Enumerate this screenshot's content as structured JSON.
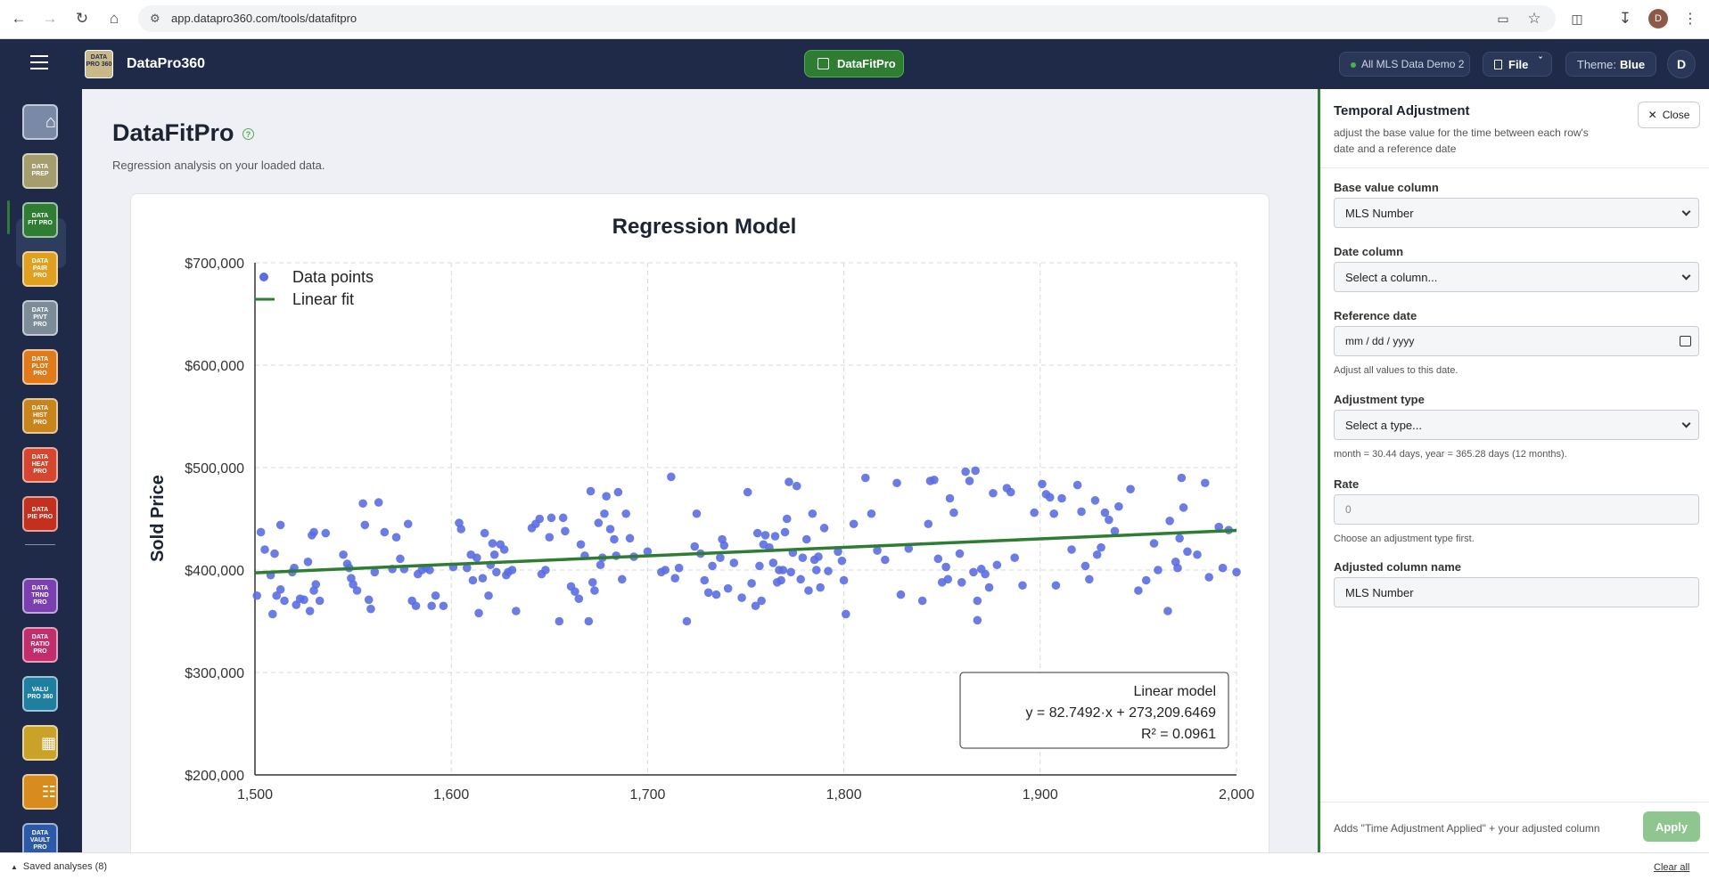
{
  "browser": {
    "url": "app.datapro360.com/tools/datafitpro",
    "profile_initial": "D"
  },
  "topbar": {
    "app_name": "DataPro360",
    "logo_text": "DATA PRO 360",
    "active_tool": "DataFitPro",
    "dataset": "All MLS Data Demo 2",
    "file_label": "File",
    "theme_label": "Theme:",
    "theme_value": "Blue",
    "user_initial": "D"
  },
  "sidebar": {
    "items": [
      {
        "id": "home",
        "label": "",
        "color": "#7a8aa6"
      },
      {
        "id": "prep",
        "label": "DATA PREP",
        "color": "#a59d6e"
      },
      {
        "id": "fit",
        "label": "DATA FIT PRO",
        "color": "#2e7d32"
      },
      {
        "id": "pair",
        "label": "DATA PAIR PRO",
        "color": "#e0a020"
      },
      {
        "id": "pivt",
        "label": "DATA PIVT PRO",
        "color": "#7c8c98"
      },
      {
        "id": "plot",
        "label": "DATA PLOT PRO",
        "color": "#e07b1c"
      },
      {
        "id": "hist",
        "label": "DATA HIST PRO",
        "color": "#c9851b"
      },
      {
        "id": "heat",
        "label": "DATA HEAT PRO",
        "color": "#d6452e"
      },
      {
        "id": "pie",
        "label": "DATA PIE PRO",
        "color": "#c4301e"
      },
      {
        "id": "trnd",
        "label": "DATA TRND PRO",
        "color": "#7b3fb0"
      },
      {
        "id": "ratio",
        "label": "DATA RATIO PRO",
        "color": "#c22d6b"
      },
      {
        "id": "valu",
        "label": "VALU PRO 360",
        "color": "#1f7fa0"
      },
      {
        "id": "table",
        "label": "",
        "color": "#c9a227"
      },
      {
        "id": "report",
        "label": "",
        "color": "#d88c1e"
      },
      {
        "id": "vault",
        "label": "DATA VAULT PRO",
        "color": "#2d5aa8"
      }
    ]
  },
  "main": {
    "title": "DataFitPro",
    "subtitle": "Regression analysis on your loaded data."
  },
  "chart_data": {
    "type": "scatter",
    "title": "Regression Model",
    "xlabel": "",
    "ylabel": "Sold Price",
    "xlim": [
      1500,
      2000
    ],
    "ylim": [
      200000,
      700000
    ],
    "x_ticks": [
      "1,500",
      "1,600",
      "1,700",
      "1,800",
      "1,900",
      "2,000"
    ],
    "y_ticks": [
      "$200,000",
      "$300,000",
      "$400,000",
      "$500,000",
      "$600,000",
      "$700,000"
    ],
    "grid": true,
    "legend_position": "top-left",
    "legend": [
      "Data points",
      "Linear fit"
    ],
    "point_color": "#5b6ee1",
    "fit_color": "#2e7d32",
    "fit": {
      "slope": 82.7492,
      "intercept": 273209.6469
    },
    "model_box": {
      "title": "Linear model",
      "equation": "y = 82.7492·x + 273,209.6469",
      "r2": "R² = 0.0961"
    },
    "points": [
      [
        1501,
        375000
      ],
      [
        1503,
        437000
      ],
      [
        1505,
        420000
      ],
      [
        1508,
        395000
      ],
      [
        1509,
        357000
      ],
      [
        1510,
        416000
      ],
      [
        1511,
        375000
      ],
      [
        1513,
        381000
      ],
      [
        1513,
        444000
      ],
      [
        1515,
        370000
      ],
      [
        1519,
        398000
      ],
      [
        1520,
        402000
      ],
      [
        1521,
        366000
      ],
      [
        1523,
        372000
      ],
      [
        1525,
        371000
      ],
      [
        1527,
        408000
      ],
      [
        1528,
        360000
      ],
      [
        1529,
        434000
      ],
      [
        1530,
        437000
      ],
      [
        1530,
        380000
      ],
      [
        1531,
        386000
      ],
      [
        1533,
        370000
      ],
      [
        1536,
        436000
      ],
      [
        1545,
        415000
      ],
      [
        1547,
        406000
      ],
      [
        1548,
        402000
      ],
      [
        1549,
        392000
      ],
      [
        1550,
        386000
      ],
      [
        1552,
        380000
      ],
      [
        1555,
        465000
      ],
      [
        1556,
        444000
      ],
      [
        1558,
        371000
      ],
      [
        1559,
        362000
      ],
      [
        1561,
        398000
      ],
      [
        1563,
        466000
      ],
      [
        1566,
        437000
      ],
      [
        1570,
        401000
      ],
      [
        1572,
        432000
      ],
      [
        1574,
        411000
      ],
      [
        1576,
        401000
      ],
      [
        1578,
        445000
      ],
      [
        1580,
        370000
      ],
      [
        1582,
        365000
      ],
      [
        1583,
        396000
      ],
      [
        1585,
        400000
      ],
      [
        1587,
        402000
      ],
      [
        1589,
        400000
      ],
      [
        1590,
        365000
      ],
      [
        1592,
        375000
      ],
      [
        1596,
        365000
      ],
      [
        1601,
        403000
      ],
      [
        1604,
        446000
      ],
      [
        1605,
        440000
      ],
      [
        1608,
        402000
      ],
      [
        1610,
        415000
      ],
      [
        1611,
        390000
      ],
      [
        1613,
        412000
      ],
      [
        1614,
        358000
      ],
      [
        1616,
        392000
      ],
      [
        1617,
        436000
      ],
      [
        1619,
        375000
      ],
      [
        1620,
        405000
      ],
      [
        1621,
        426000
      ],
      [
        1622,
        415000
      ],
      [
        1623,
        398000
      ],
      [
        1625,
        425000
      ],
      [
        1627,
        420000
      ],
      [
        1628,
        395000
      ],
      [
        1629,
        398000
      ],
      [
        1631,
        400000
      ],
      [
        1633,
        360000
      ],
      [
        1641,
        441000
      ],
      [
        1643,
        445000
      ],
      [
        1645,
        450000
      ],
      [
        1646,
        396000
      ],
      [
        1648,
        400000
      ],
      [
        1650,
        432000
      ],
      [
        1651,
        451000
      ],
      [
        1655,
        350000
      ],
      [
        1657,
        451000
      ],
      [
        1658,
        438000
      ],
      [
        1661,
        384000
      ],
      [
        1663,
        379000
      ],
      [
        1665,
        372000
      ],
      [
        1666,
        425000
      ],
      [
        1668,
        414000
      ],
      [
        1670,
        350000
      ],
      [
        1671,
        477000
      ],
      [
        1672,
        388000
      ],
      [
        1673,
        380000
      ],
      [
        1675,
        446000
      ],
      [
        1676,
        405000
      ],
      [
        1677,
        412000
      ],
      [
        1678,
        455000
      ],
      [
        1679,
        472000
      ],
      [
        1681,
        440000
      ],
      [
        1683,
        430000
      ],
      [
        1684,
        414000
      ],
      [
        1685,
        476000
      ],
      [
        1687,
        391000
      ],
      [
        1689,
        455000
      ],
      [
        1691,
        431000
      ],
      [
        1693,
        413000
      ],
      [
        1700,
        418000
      ],
      [
        1707,
        398000
      ],
      [
        1709,
        400000
      ],
      [
        1712,
        491000
      ],
      [
        1714,
        392000
      ],
      [
        1716,
        402000
      ],
      [
        1720,
        350000
      ],
      [
        1724,
        423000
      ],
      [
        1725,
        455000
      ],
      [
        1727,
        416000
      ],
      [
        1729,
        390000
      ],
      [
        1731,
        378000
      ],
      [
        1733,
        404000
      ],
      [
        1735,
        376000
      ],
      [
        1737,
        412000
      ],
      [
        1738,
        430000
      ],
      [
        1739,
        424000
      ],
      [
        1741,
        382000
      ],
      [
        1744,
        407000
      ],
      [
        1748,
        373000
      ],
      [
        1751,
        476000
      ],
      [
        1753,
        387000
      ],
      [
        1755,
        365000
      ],
      [
        1756,
        436000
      ],
      [
        1757,
        404000
      ],
      [
        1758,
        370000
      ],
      [
        1759,
        425000
      ],
      [
        1760,
        434000
      ],
      [
        1762,
        422000
      ],
      [
        1764,
        407000
      ],
      [
        1765,
        433000
      ],
      [
        1766,
        388000
      ],
      [
        1767,
        400000
      ],
      [
        1768,
        390000
      ],
      [
        1769,
        400000
      ],
      [
        1770,
        437000
      ],
      [
        1771,
        450000
      ],
      [
        1772,
        486000
      ],
      [
        1773,
        398000
      ],
      [
        1774,
        417000
      ],
      [
        1776,
        482000
      ],
      [
        1778,
        391000
      ],
      [
        1779,
        412000
      ],
      [
        1781,
        430000
      ],
      [
        1782,
        380000
      ],
      [
        1784,
        455000
      ],
      [
        1785,
        410000
      ],
      [
        1786,
        400000
      ],
      [
        1787,
        413000
      ],
      [
        1788,
        383000
      ],
      [
        1790,
        441000
      ],
      [
        1792,
        399000
      ],
      [
        1797,
        418000
      ],
      [
        1799,
        409000
      ],
      [
        1800,
        390000
      ],
      [
        1801,
        357000
      ],
      [
        1805,
        445000
      ],
      [
        1811,
        490000
      ],
      [
        1814,
        455000
      ],
      [
        1817,
        419000
      ],
      [
        1821,
        410000
      ],
      [
        1827,
        485000
      ],
      [
        1829,
        376000
      ],
      [
        1833,
        421000
      ],
      [
        1840,
        370000
      ],
      [
        1843,
        445000
      ],
      [
        1844,
        487000
      ],
      [
        1846,
        488000
      ],
      [
        1848,
        411000
      ],
      [
        1850,
        388000
      ],
      [
        1852,
        403000
      ],
      [
        1853,
        391000
      ],
      [
        1854,
        470000
      ],
      [
        1856,
        456000
      ],
      [
        1859,
        416000
      ],
      [
        1860,
        388000
      ],
      [
        1862,
        496000
      ],
      [
        1864,
        487000
      ],
      [
        1866,
        398000
      ],
      [
        1867,
        497000
      ],
      [
        1868,
        370000
      ],
      [
        1868,
        351000
      ],
      [
        1870,
        401000
      ],
      [
        1872,
        396000
      ],
      [
        1874,
        383000
      ],
      [
        1876,
        475000
      ],
      [
        1878,
        405000
      ],
      [
        1883,
        480000
      ],
      [
        1885,
        476000
      ],
      [
        1887,
        412000
      ],
      [
        1891,
        385000
      ],
      [
        1897,
        456000
      ],
      [
        1901,
        484000
      ],
      [
        1903,
        474000
      ],
      [
        1905,
        471000
      ],
      [
        1907,
        455000
      ],
      [
        1908,
        385000
      ],
      [
        1911,
        470000
      ],
      [
        1916,
        420000
      ],
      [
        1919,
        483000
      ],
      [
        1921,
        457000
      ],
      [
        1923,
        404000
      ],
      [
        1925,
        391000
      ],
      [
        1928,
        468000
      ],
      [
        1929,
        415000
      ],
      [
        1931,
        422000
      ],
      [
        1933,
        456000
      ],
      [
        1935,
        449000
      ],
      [
        1938,
        438000
      ],
      [
        1940,
        462000
      ],
      [
        1946,
        479000
      ],
      [
        1950,
        380000
      ],
      [
        1954,
        390000
      ],
      [
        1958,
        426000
      ],
      [
        1960,
        400000
      ],
      [
        1965,
        360000
      ],
      [
        1966,
        448000
      ],
      [
        1969,
        408000
      ],
      [
        1970,
        402000
      ],
      [
        1971,
        431000
      ],
      [
        1972,
        490000
      ],
      [
        1973,
        461000
      ],
      [
        1975,
        418000
      ],
      [
        1980,
        415000
      ],
      [
        1984,
        485000
      ],
      [
        1986,
        393000
      ],
      [
        1991,
        442000
      ],
      [
        1993,
        402000
      ],
      [
        1996,
        439000
      ],
      [
        2000,
        398000
      ]
    ]
  },
  "panel": {
    "title": "Temporal Adjustment",
    "subtitle": "adjust the base value for the time between each row's date and a reference date",
    "close_label": "Close",
    "base_label": "Base value column",
    "base_value": "MLS Number",
    "date_label": "Date column",
    "date_value": "Select a column...",
    "ref_label": "Reference date",
    "ref_placeholder": "mm / dd / yyyy",
    "ref_hint": "Adjust all values to this date.",
    "adj_label": "Adjustment type",
    "adj_value": "Select a type...",
    "adj_hint": "month = 30.44 days, year = 365.28 days (12 months).",
    "rate_label": "Rate",
    "rate_value": "0",
    "rate_hint": "Choose an adjustment type first.",
    "name_label": "Adjusted column name",
    "name_value": "MLS Number",
    "footer_hint": "Adds \"Time Adjustment Applied\" + your adjusted column",
    "apply_label": "Apply"
  },
  "bottom": {
    "saved_label": "Saved analyses (8)",
    "clear_label": "Clear all"
  }
}
